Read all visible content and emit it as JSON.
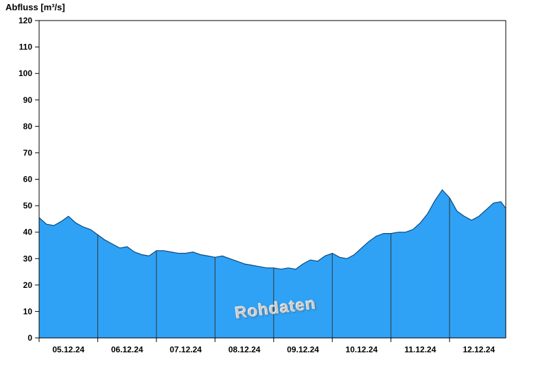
{
  "title": "Abfluss [m³/s]",
  "watermark": {
    "text": "Rohdaten"
  },
  "colors": {
    "fill": "#2FA2F6",
    "outline": "#084A7F",
    "day_line": "#333333",
    "axis": "#000000",
    "tick_label": "#000000",
    "watermark": "#cccccc",
    "background": "#ffffff"
  },
  "chart_data": {
    "type": "area",
    "title": "Abfluss [m³/s]",
    "ylabel": "Abfluss [m³/s]",
    "xlabel": "",
    "ylim": [
      0,
      120
    ],
    "y_ticks": [
      0,
      10,
      20,
      30,
      40,
      50,
      60,
      70,
      80,
      90,
      100,
      110,
      120
    ],
    "x_tick_labels": [
      "05.12.24",
      "06.12.24",
      "07.12.24",
      "08.12.24",
      "09.12.24",
      "10.12.24",
      "11.12.24",
      "12.12.24"
    ],
    "hours_span": 191,
    "grid": "vertical-day-boundary-lines-inside-fill-only",
    "legend_position": "none",
    "annotations": [
      "Rohdaten"
    ],
    "series": [
      {
        "name": "Rohdaten",
        "unit": "m³/s",
        "hours": [
          0,
          3,
          6,
          9,
          12,
          15,
          18,
          21,
          24,
          27,
          30,
          33,
          36,
          39,
          42,
          45,
          48,
          51,
          54,
          57,
          60,
          63,
          66,
          69,
          72,
          75,
          78,
          81,
          84,
          87,
          90,
          93,
          96,
          99,
          102,
          105,
          108,
          111,
          114,
          117,
          120,
          123,
          126,
          129,
          132,
          135,
          138,
          141,
          144,
          147,
          150,
          153,
          156,
          159,
          162,
          165,
          168,
          171,
          174,
          177,
          180,
          183,
          186,
          189,
          191
        ],
        "values": [
          45.5,
          43.0,
          42.5,
          44.0,
          46.0,
          43.5,
          42.0,
          41.0,
          39.0,
          37.0,
          35.5,
          34.0,
          34.5,
          32.5,
          31.5,
          31.0,
          33.0,
          33.0,
          32.5,
          32.0,
          32.0,
          32.5,
          31.5,
          31.0,
          30.5,
          31.0,
          30.0,
          29.0,
          28.0,
          27.5,
          27.0,
          26.5,
          26.5,
          26.0,
          26.5,
          26.0,
          28.0,
          29.5,
          29.0,
          31.0,
          32.0,
          30.5,
          30.0,
          31.5,
          34.0,
          36.5,
          38.5,
          39.5,
          39.5,
          40.0,
          40.0,
          41.0,
          43.5,
          47.0,
          52.0,
          56.0,
          53.0,
          48.0,
          46.0,
          44.5,
          46.0,
          48.5,
          51.0,
          51.5,
          49.0
        ]
      }
    ]
  }
}
